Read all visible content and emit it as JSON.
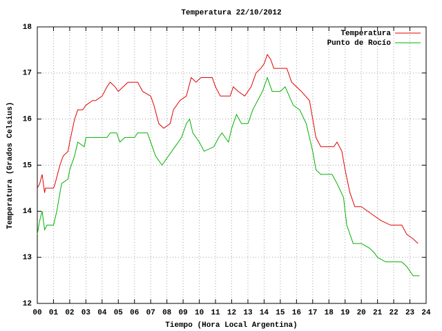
{
  "chart_data": {
    "type": "line",
    "title": "Temperatura 22/10/2012",
    "x_label": "Tiempo (Hora Local Argentina)",
    "y_label": "Temperatura (Grados Celsius)",
    "xlim": [
      0,
      24
    ],
    "ylim": [
      12,
      18
    ],
    "xticks": [
      {
        "value": 0,
        "label": "00"
      },
      {
        "value": 1,
        "label": "01"
      },
      {
        "value": 2,
        "label": "02"
      },
      {
        "value": 3,
        "label": "03"
      },
      {
        "value": 4,
        "label": "04"
      },
      {
        "value": 5,
        "label": "05"
      },
      {
        "value": 6,
        "label": "06"
      },
      {
        "value": 7,
        "label": "07"
      },
      {
        "value": 8,
        "label": "08"
      },
      {
        "value": 9,
        "label": "09"
      },
      10,
      11,
      12,
      13,
      14,
      15,
      16,
      17,
      18,
      19,
      20,
      21,
      22,
      23,
      24
    ],
    "yticks": [
      12,
      13,
      14,
      15,
      16,
      17,
      18
    ],
    "grid": true,
    "legend_position": "top-right",
    "series": [
      {
        "name": "Temperatura",
        "color": "#e00000",
        "x": [
          0,
          0.15,
          0.3,
          0.45,
          0.5,
          1.0,
          1.1,
          1.4,
          1.6,
          1.9,
          2.0,
          2.3,
          2.5,
          2.8,
          3.0,
          3.4,
          3.6,
          4.0,
          4.3,
          4.5,
          4.8,
          5.0,
          5.3,
          5.6,
          6.2,
          6.5,
          7.0,
          7.2,
          7.5,
          7.8,
          8.2,
          8.4,
          8.8,
          9.2,
          9.5,
          9.8,
          10.1,
          10.8,
          11.0,
          11.3,
          11.9,
          12.1,
          12.4,
          12.8,
          13.2,
          13.5,
          13.8,
          14.0,
          14.2,
          14.4,
          14.6,
          15.4,
          15.7,
          16.0,
          16.3,
          16.8,
          17.0,
          17.2,
          17.5,
          18.0,
          18.3,
          18.5,
          18.8,
          19.0,
          19.3,
          19.6,
          20.0,
          20.8,
          21.2,
          21.8,
          22.5,
          22.8,
          23.2,
          23.5
        ],
        "values": [
          14.5,
          14.6,
          14.8,
          14.4,
          14.5,
          14.5,
          14.6,
          15.0,
          15.2,
          15.3,
          15.5,
          16.0,
          16.2,
          16.2,
          16.3,
          16.4,
          16.4,
          16.5,
          16.7,
          16.8,
          16.7,
          16.6,
          16.7,
          16.8,
          16.8,
          16.6,
          16.5,
          16.3,
          15.9,
          15.8,
          15.9,
          16.2,
          16.4,
          16.5,
          16.9,
          16.8,
          16.9,
          16.9,
          16.7,
          16.5,
          16.5,
          16.7,
          16.6,
          16.5,
          16.7,
          17.0,
          17.1,
          17.2,
          17.4,
          17.3,
          17.1,
          17.1,
          16.8,
          16.7,
          16.6,
          16.4,
          16.0,
          15.6,
          15.4,
          15.4,
          15.4,
          15.5,
          15.3,
          14.9,
          14.4,
          14.1,
          14.1,
          13.9,
          13.8,
          13.7,
          13.7,
          13.5,
          13.4,
          13.3
        ]
      },
      {
        "name": "Punto de Rocío",
        "color": "#00b000",
        "x": [
          0,
          0.15,
          0.3,
          0.45,
          0.6,
          1.0,
          1.2,
          1.5,
          1.9,
          2.0,
          2.3,
          2.5,
          2.9,
          3.0,
          3.5,
          4.0,
          4.3,
          4.5,
          4.9,
          5.1,
          5.4,
          6.0,
          6.2,
          6.8,
          7.0,
          7.3,
          7.7,
          8.1,
          8.5,
          8.9,
          9.2,
          9.4,
          9.6,
          10.0,
          10.3,
          10.9,
          11.2,
          11.4,
          11.8,
          12.0,
          12.3,
          12.6,
          13.0,
          13.3,
          13.6,
          13.9,
          14.2,
          14.5,
          15.0,
          15.3,
          15.8,
          16.2,
          16.6,
          17.0,
          17.2,
          17.5,
          18.2,
          18.5,
          18.9,
          19.1,
          19.5,
          20.0,
          20.5,
          20.8,
          21.0,
          21.5,
          22.5,
          22.8,
          23.2,
          23.6
        ],
        "values": [
          13.5,
          13.8,
          14.0,
          13.6,
          13.7,
          13.7,
          14.0,
          14.6,
          14.7,
          14.9,
          15.2,
          15.5,
          15.4,
          15.6,
          15.6,
          15.6,
          15.6,
          15.7,
          15.7,
          15.5,
          15.6,
          15.6,
          15.7,
          15.7,
          15.5,
          15.2,
          15.0,
          15.2,
          15.4,
          15.6,
          15.9,
          16.0,
          15.7,
          15.5,
          15.3,
          15.4,
          15.6,
          15.7,
          15.5,
          15.8,
          16.1,
          15.9,
          15.9,
          16.2,
          16.4,
          16.6,
          16.9,
          16.6,
          16.6,
          16.7,
          16.3,
          16.2,
          15.9,
          15.3,
          14.9,
          14.8,
          14.8,
          14.6,
          14.3,
          13.7,
          13.3,
          13.3,
          13.2,
          13.1,
          13.0,
          12.9,
          12.9,
          12.8,
          12.6,
          12.6
        ]
      }
    ]
  }
}
